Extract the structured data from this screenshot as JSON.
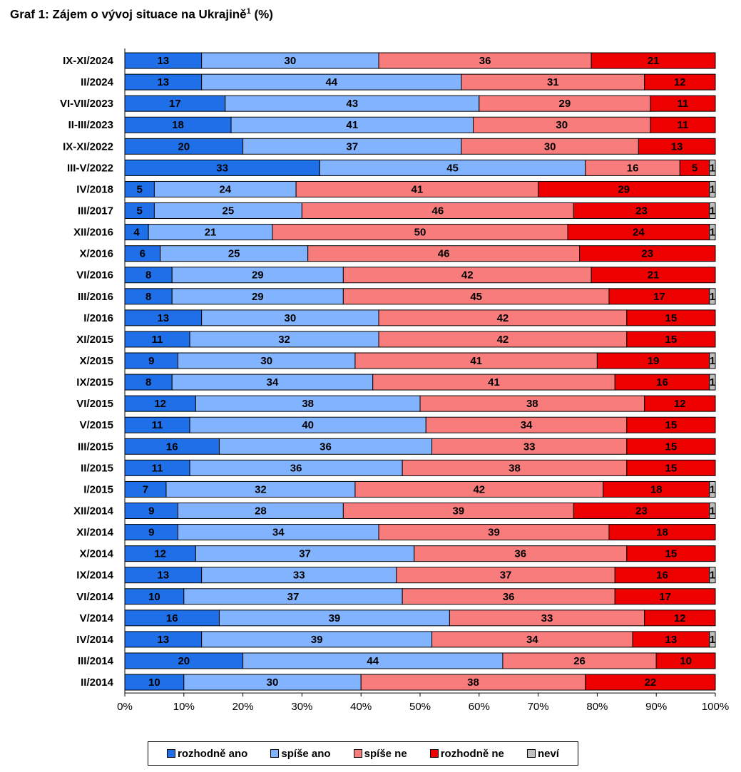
{
  "chart_data": {
    "type": "bar",
    "orientation": "horizontal",
    "stacked": true,
    "title": "Graf 1: Zájem o vývoj situace na Ukrajině",
    "title_superscript": "1",
    "title_suffix": "(%)",
    "categories": [
      "IX-XI/2024",
      "II/2024",
      "VI-VII/2023",
      "II-III/2023",
      "IX-XI/2022",
      "III-V/2022",
      "IV/2018",
      "III/2017",
      "XII/2016",
      "X/2016",
      "VI/2016",
      "III/2016",
      "I/2016",
      "XI/2015",
      "X/2015",
      "IX/2015",
      "VI/2015",
      "V/2015",
      "III/2015",
      "II/2015",
      "I/2015",
      "XII/2014",
      "XI/2014",
      "X/2014",
      "IX/2014",
      "VI/2014",
      "V/2014",
      "IV/2014",
      "III/2014",
      "II/2014"
    ],
    "series": [
      {
        "name": "rozhodně ano",
        "color": "#1f6fe8",
        "values": [
          13,
          13,
          17,
          18,
          20,
          33,
          5,
          5,
          4,
          6,
          8,
          8,
          13,
          11,
          9,
          8,
          12,
          11,
          16,
          11,
          7,
          9,
          9,
          12,
          13,
          10,
          16,
          13,
          20,
          10
        ]
      },
      {
        "name": "spíše ano",
        "color": "#82b3ff",
        "values": [
          30,
          44,
          43,
          41,
          37,
          45,
          24,
          25,
          21,
          25,
          29,
          29,
          30,
          32,
          30,
          34,
          38,
          40,
          36,
          36,
          32,
          28,
          34,
          37,
          33,
          37,
          39,
          39,
          44,
          30
        ]
      },
      {
        "name": "spíše ne",
        "color": "#f97c7c",
        "values": [
          36,
          31,
          29,
          30,
          30,
          16,
          41,
          46,
          50,
          46,
          42,
          45,
          42,
          42,
          41,
          41,
          38,
          34,
          33,
          38,
          42,
          39,
          39,
          36,
          37,
          36,
          33,
          34,
          26,
          38
        ]
      },
      {
        "name": "rozhodně ne",
        "color": "#ee0000",
        "values": [
          21,
          12,
          11,
          11,
          13,
          5,
          29,
          23,
          24,
          23,
          21,
          17,
          15,
          15,
          19,
          16,
          12,
          15,
          15,
          15,
          18,
          23,
          18,
          15,
          16,
          17,
          12,
          13,
          10,
          22
        ]
      },
      {
        "name": "neví",
        "color": "#c0c0c0",
        "values": [
          0,
          0,
          0,
          0,
          0,
          1,
          1,
          1,
          1,
          0,
          0,
          1,
          0,
          0,
          1,
          1,
          0,
          0,
          0,
          0,
          1,
          1,
          0,
          0,
          1,
          0,
          0,
          1,
          0,
          0
        ]
      }
    ],
    "xlim": [
      0,
      100
    ],
    "xticks": [
      "0%",
      "10%",
      "20%",
      "30%",
      "40%",
      "50%",
      "60%",
      "70%",
      "80%",
      "90%",
      "100%"
    ],
    "legend_position": "bottom",
    "grid": false
  }
}
